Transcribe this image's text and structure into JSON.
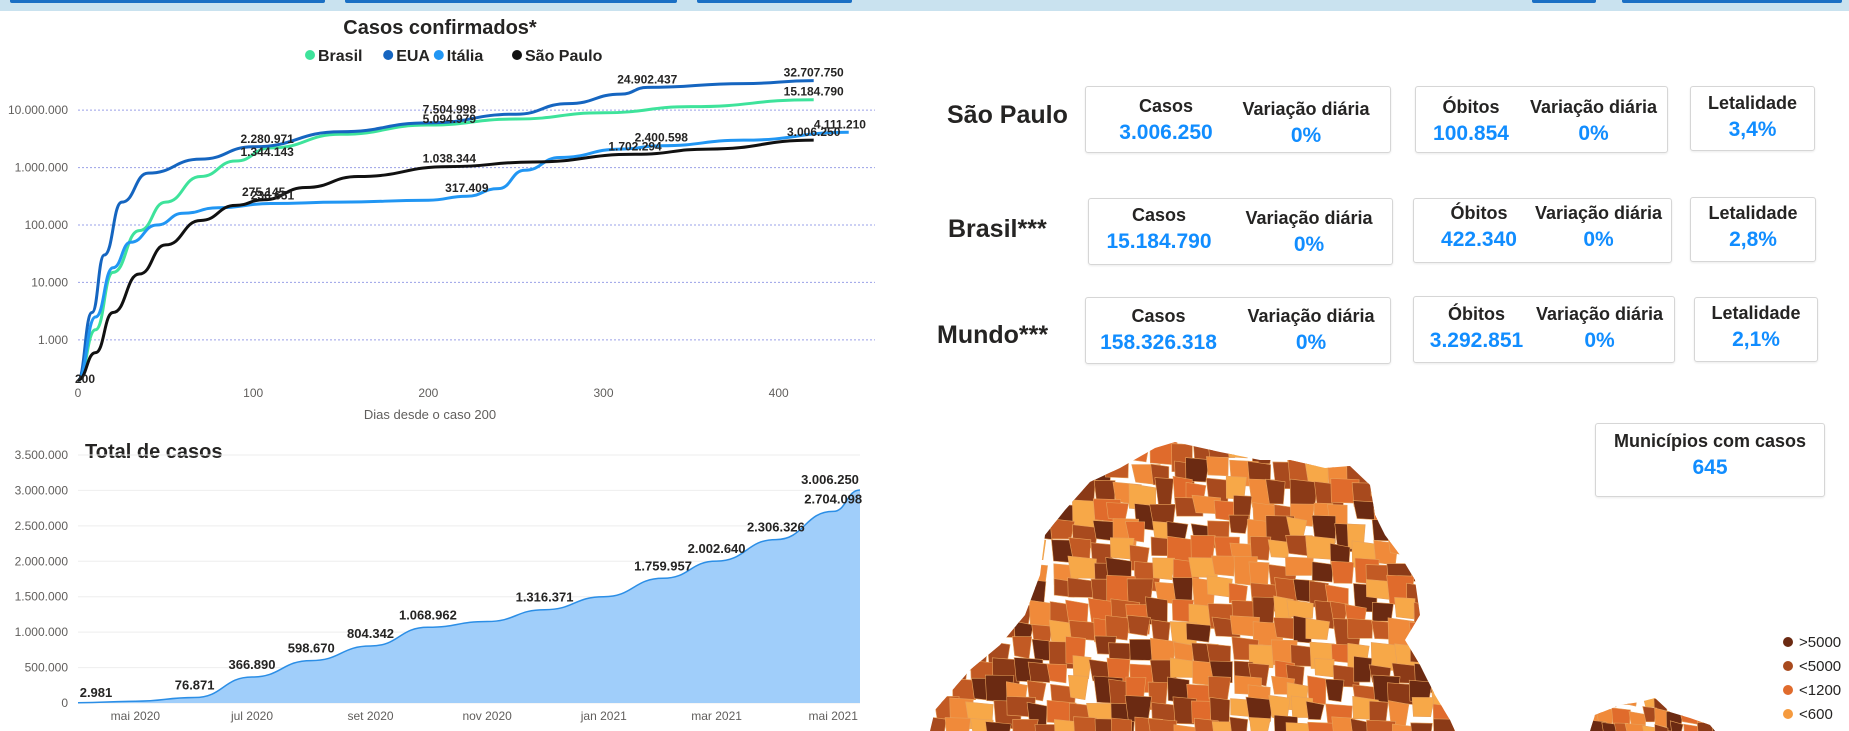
{
  "line_chart": {
    "title": "Casos confirmados*",
    "xlabel": "Dias desde o caso 200",
    "legend": [
      {
        "name": "Brasil",
        "color": "#3ee39b"
      },
      {
        "name": "EUA",
        "color": "#1565c0"
      },
      {
        "name": "Itália",
        "color": "#2196f3"
      },
      {
        "name": "São Paulo",
        "color": "#111111"
      }
    ],
    "y_ticks": [
      "10.000.000",
      "1.000.000",
      "100.000",
      "10.000",
      "1.000"
    ],
    "x_ticks": [
      "0",
      "100",
      "200",
      "300",
      "400"
    ],
    "start_label": "200",
    "data_labels": [
      {
        "text": "32.707.750",
        "x": 420,
        "y": 32707750
      },
      {
        "text": "24.902.437",
        "x": 325,
        "y": 24902437
      },
      {
        "text": "15.184.790",
        "x": 420,
        "y": 15184790
      },
      {
        "text": "5.094.979",
        "x": 212,
        "y": 5094979
      },
      {
        "text": "7.504.998",
        "x": 212,
        "y": 7504998
      },
      {
        "text": "2.280.971",
        "x": 108,
        "y": 2280971
      },
      {
        "text": "1.344.143",
        "x": 108,
        "y": 1344143
      },
      {
        "text": "4.111.210",
        "x": 435,
        "y": 4111210
      },
      {
        "text": "2.400.598",
        "x": 333,
        "y": 2400598
      },
      {
        "text": "1.038.344",
        "x": 212,
        "y": 1038344
      },
      {
        "text": "1.702.294",
        "x": 318,
        "y": 1702294
      },
      {
        "text": "3.006.250",
        "x": 420,
        "y": 3006250
      },
      {
        "text": "317.409",
        "x": 222,
        "y": 317409
      },
      {
        "text": "236.651",
        "x": 111,
        "y": 236651
      },
      {
        "text": "275.145",
        "x": 106,
        "y": 275145
      }
    ]
  },
  "area_chart": {
    "title": "Total de casos",
    "y_ticks": [
      "3.500.000",
      "3.000.000",
      "2.500.000",
      "2.000.000",
      "1.500.000",
      "1.000.000",
      "500.000",
      "0"
    ],
    "x_ticks": [
      "mai 2020",
      "jul 2020",
      "set 2020",
      "nov 2020",
      "jan 2021",
      "mar 2021",
      "mai 2021"
    ],
    "fill_color": "#a0cefa",
    "line_color": "#2b8ee6"
  },
  "chart_data": [
    {
      "type": "line",
      "title": "Casos confirmados*",
      "xlabel": "Dias desde o caso 200",
      "ylabel": "",
      "yscale": "log",
      "ylim": [
        200,
        50000000
      ],
      "xlim": [
        0,
        455
      ],
      "grid": true,
      "legend_position": "top",
      "series": [
        {
          "name": "Brasil",
          "points": [
            [
              0,
              200
            ],
            [
              10,
              1500
            ],
            [
              20,
              15000
            ],
            [
              35,
              80000
            ],
            [
              50,
              250000
            ],
            [
              70,
              700000
            ],
            [
              90,
              1300000
            ],
            [
              110,
              2200000
            ],
            [
              150,
              3800000
            ],
            [
              200,
              5500000
            ],
            [
              250,
              7000000
            ],
            [
              300,
              9000000
            ],
            [
              350,
              11500000
            ],
            [
              420,
              15184790
            ]
          ]
        },
        {
          "name": "EUA",
          "points": [
            [
              0,
              200
            ],
            [
              8,
              3000
            ],
            [
              15,
              30000
            ],
            [
              25,
              250000
            ],
            [
              40,
              800000
            ],
            [
              70,
              1400000
            ],
            [
              100,
              2300000
            ],
            [
              150,
              4200000
            ],
            [
              200,
              6000000
            ],
            [
              250,
              8500000
            ],
            [
              280,
              13000000
            ],
            [
              310,
              19000000
            ],
            [
              325,
              24902437
            ],
            [
              380,
              29000000
            ],
            [
              420,
              32707750
            ]
          ]
        },
        {
          "name": "Itália",
          "points": [
            [
              0,
              200
            ],
            [
              10,
              2500
            ],
            [
              20,
              18000
            ],
            [
              30,
              50000
            ],
            [
              45,
              100000
            ],
            [
              60,
              160000
            ],
            [
              80,
              200000
            ],
            [
              110,
              236651
            ],
            [
              150,
              250000
            ],
            [
              200,
              270000
            ],
            [
              222,
              317409
            ],
            [
              240,
              430000
            ],
            [
              255,
              900000
            ],
            [
              275,
              1500000
            ],
            [
              310,
              2100000
            ],
            [
              333,
              2400598
            ],
            [
              380,
              3000000
            ],
            [
              440,
              4111210
            ]
          ]
        },
        {
          "name": "São Paulo",
          "points": [
            [
              0,
              200
            ],
            [
              10,
              600
            ],
            [
              20,
              3000
            ],
            [
              35,
              14000
            ],
            [
              50,
              45000
            ],
            [
              70,
              120000
            ],
            [
              90,
              220000
            ],
            [
              106,
              275145
            ],
            [
              130,
              450000
            ],
            [
              160,
              700000
            ],
            [
              212,
              1038344
            ],
            [
              260,
              1250000
            ],
            [
              318,
              1702294
            ],
            [
              360,
              2100000
            ],
            [
              420,
              3006250
            ]
          ]
        }
      ]
    },
    {
      "type": "area",
      "title": "Total de casos",
      "xlabel": "",
      "ylabel": "",
      "ylim": [
        0,
        3500000
      ],
      "x_ticks": [
        "mai 2020",
        "jul 2020",
        "set 2020",
        "nov 2020",
        "jan 2021",
        "mar 2021",
        "mai 2021"
      ],
      "grid": true,
      "series": [
        {
          "name": "",
          "x": [
            "2020-04-01",
            "2020-05-01",
            "2020-06-01",
            "2020-07-01",
            "2020-08-01",
            "2020-09-01",
            "2020-10-01",
            "2020-11-01",
            "2020-12-01",
            "2021-01-01",
            "2021-02-01",
            "2021-03-01",
            "2021-04-01",
            "2021-05-01"
          ],
          "values": [
            2981,
            24000,
            76871,
            366890,
            598670,
            804342,
            1068962,
            1150000,
            1316371,
            1500000,
            1759957,
            2002640,
            2306326,
            2704098
          ]
        }
      ],
      "data_labels": [
        {
          "text": "2.981",
          "x": "2020-04-01",
          "y": 2981
        },
        {
          "text": "76.871",
          "x": "2020-06-01",
          "y": 76871
        },
        {
          "text": "366.890",
          "x": "2020-07-01",
          "y": 366890
        },
        {
          "text": "598.670",
          "x": "2020-08-01",
          "y": 598670
        },
        {
          "text": "804.342",
          "x": "2020-09-01",
          "y": 804342
        },
        {
          "text": "1.068.962",
          "x": "2020-10-01",
          "y": 1068962
        },
        {
          "text": "1.316.371",
          "x": "2020-12-01",
          "y": 1316371
        },
        {
          "text": "1.759.957",
          "x": "2021-02-01",
          "y": 1759957
        },
        {
          "text": "2.002.640",
          "x": "2021-03-01",
          "y": 2002640
        },
        {
          "text": "2.306.326",
          "x": "2021-04-01",
          "y": 2306326
        },
        {
          "text": "2.704.098",
          "x": "2021-05-01",
          "y": 2704098
        },
        {
          "text": "3.006.250",
          "x": "2021-05-15",
          "y": 3006250
        }
      ]
    }
  ],
  "regions": [
    {
      "name": "São Paulo",
      "casos_label": "Casos",
      "casos": "3.006.250",
      "var1_label": "Variação diária",
      "var1": "0%",
      "obitos_label": "Óbitos",
      "obitos": "100.854",
      "var2_label": "Variação diária",
      "var2": "0%",
      "let_label": "Letalidade",
      "letalidade": "3,4%"
    },
    {
      "name": "Brasil***",
      "casos_label": "Casos",
      "casos": "15.184.790",
      "var1_label": "Variação diária",
      "var1": "0%",
      "obitos_label": "Óbitos",
      "obitos": "422.340",
      "var2_label": "Variação diária",
      "var2": "0%",
      "let_label": "Letalidade",
      "letalidade": "2,8%"
    },
    {
      "name": "Mundo***",
      "casos_label": "Casos",
      "casos": "158.326.318",
      "var1_label": "Variação diária",
      "var1": "0%",
      "obitos_label": "Óbitos",
      "obitos": "3.292.851",
      "var2_label": "Variação diária",
      "var2": "0%",
      "let_label": "Letalidade",
      "letalidade": "2,1%"
    }
  ],
  "municipios": {
    "label": "Municípios com casos",
    "value": "645"
  },
  "map_legend": [
    {
      "label": ">5000",
      "color": "#6b2a12"
    },
    {
      "label": "<5000",
      "color": "#a84a1e"
    },
    {
      "label": "<1200",
      "color": "#e06b2c"
    },
    {
      "label": "<600",
      "color": "#f59a3e"
    }
  ],
  "colors": {
    "accent": "#118dff",
    "map_palette": [
      "#6b2a12",
      "#8b3a17",
      "#a84a1e",
      "#c25a24",
      "#e06b2c",
      "#f08a3a",
      "#f7a848"
    ]
  }
}
